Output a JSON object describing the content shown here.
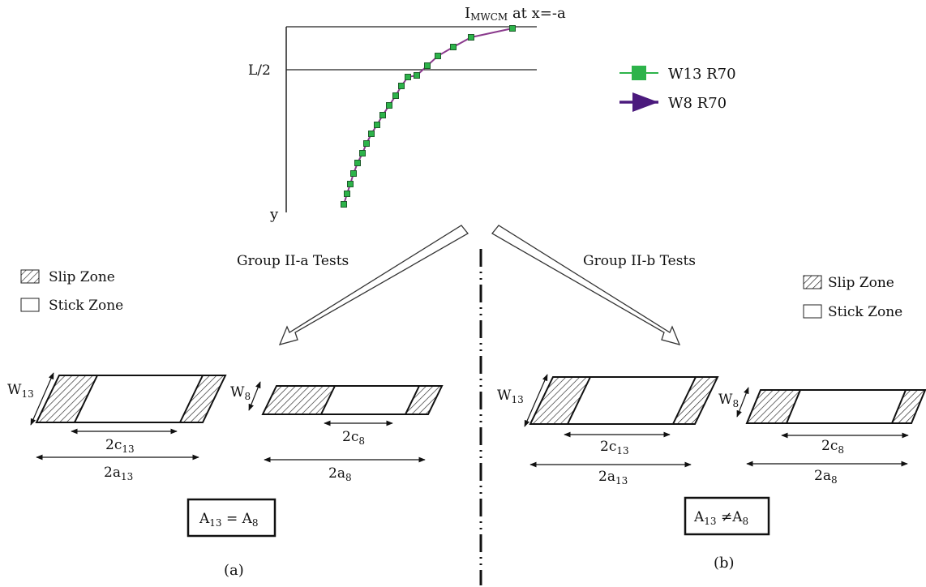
{
  "top_plot": {
    "title_main": "I",
    "title_sub": "MWCM",
    "title_rest": " at x=-a",
    "y_axis_label": "y",
    "hline_label": "L/2",
    "legend": [
      {
        "label": "W13 R70",
        "color": "#2db34a",
        "marker": "square"
      },
      {
        "label": "W8 R70",
        "color": "#4b1a7d",
        "marker": "triangle"
      }
    ],
    "curve_color": "#8a3a8c",
    "marker_color": "#2db34a",
    "marker_edge": "#1d5b2a"
  },
  "arrows": {
    "left_label": "Group II-a Tests",
    "right_label": "Group II-b Tests"
  },
  "zone_legend_left": {
    "slip": "Slip Zone",
    "stick": "Stick Zone"
  },
  "zone_legend_right": {
    "slip": "Slip Zone",
    "stick": "Stick Zone"
  },
  "panel_a": {
    "rect13": {
      "w_main": "W",
      "w_sub": "13",
      "c_main": "2c",
      "c_sub": "13",
      "a_main": "2a",
      "a_sub": "13"
    },
    "rect8": {
      "w_main": "W",
      "w_sub": "8",
      "c_main": "2c",
      "c_sub": "8",
      "a_main": "2a",
      "a_sub": "8"
    },
    "eq": {
      "p1": "A",
      "s1": "13",
      "op": " = ",
      "p2": "A",
      "s2": "8"
    },
    "caption": "(a)"
  },
  "panel_b": {
    "rect13": {
      "w_main": "W",
      "w_sub": "13",
      "c_main": "2c",
      "c_sub": "13",
      "a_main": "2a",
      "a_sub": "13"
    },
    "rect8": {
      "w_main": "W",
      "w_sub": "8",
      "c_main": "2c",
      "c_sub": "8",
      "a_main": "2a",
      "a_sub": "8"
    },
    "eq": {
      "p1": "A",
      "s1": "13",
      "op": " ≠",
      "p2": "A",
      "s2": "8"
    },
    "caption": "(b)"
  }
}
